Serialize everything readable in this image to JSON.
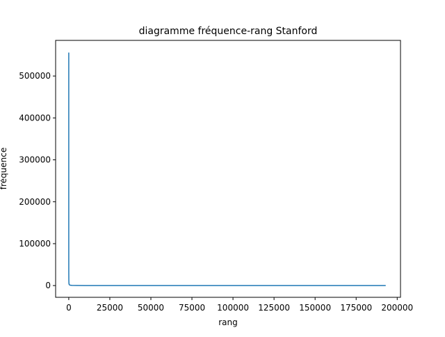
{
  "chart_data": {
    "type": "line",
    "title": "diagramme fréquence-rang Stanford",
    "xlabel": "rang",
    "ylabel": "fréquence",
    "xlim": [
      -8000,
      202000
    ],
    "ylim": [
      -28000,
      585000
    ],
    "xticks": [
      0,
      25000,
      50000,
      75000,
      100000,
      125000,
      150000,
      175000,
      200000
    ],
    "yticks": [
      0,
      100000,
      200000,
      300000,
      400000,
      500000
    ],
    "grid": false,
    "legend": "none",
    "series": [
      {
        "color": "#1f77b4",
        "x": [
          1,
          2,
          3,
          5,
          10,
          20,
          50,
          100,
          200,
          500,
          1000,
          2000,
          5000,
          10000,
          20000,
          50000,
          100000,
          150000,
          193000
        ],
        "y": [
          556000,
          300000,
          200000,
          120000,
          60000,
          30000,
          12000,
          6000,
          3000,
          1500,
          800,
          450,
          200,
          100,
          50,
          20,
          8,
          3,
          1
        ]
      }
    ]
  }
}
